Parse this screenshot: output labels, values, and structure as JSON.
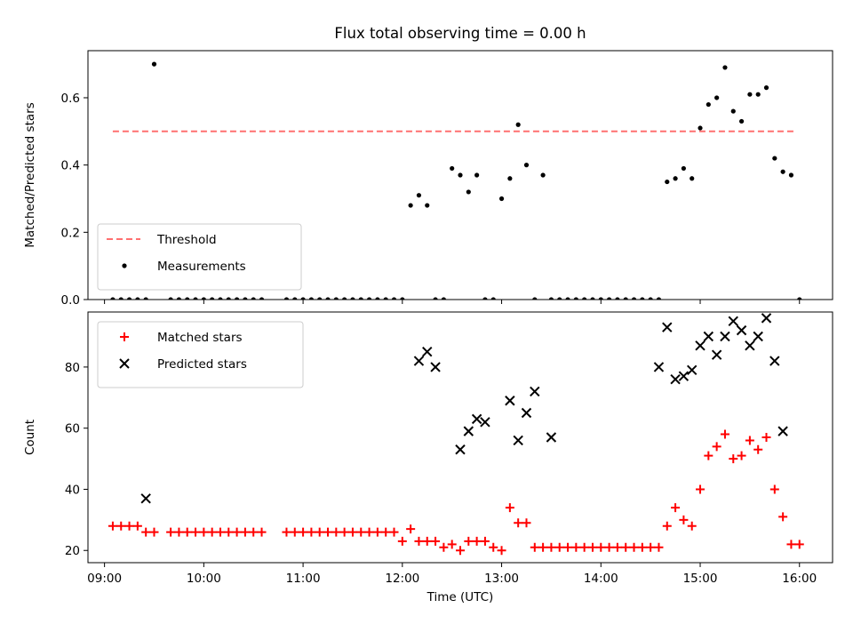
{
  "chart_data": [
    {
      "type": "scatter",
      "title": "Flux total observing time = 0.00 h",
      "xlabel": "",
      "ylabel": "Matched/Predicted stars",
      "xlim": [
        "08:50",
        "16:20"
      ],
      "ylim": [
        0,
        0.74
      ],
      "xticks": [
        "09:00",
        "10:00",
        "11:00",
        "12:00",
        "13:00",
        "14:00",
        "15:00",
        "16:00"
      ],
      "show_xtick_labels": false,
      "yticks": [
        0.0,
        0.2,
        0.4,
        0.6
      ],
      "ytick_labels": [
        "0.0",
        "0.2",
        "0.4",
        "0.6"
      ],
      "legend_position": "lower-left",
      "grid": false,
      "series": [
        {
          "name": "Threshold",
          "kind": "dashed-line",
          "color": "#ff7070",
          "x": [
            "09:05",
            "15:57"
          ],
          "values": [
            0.5,
            0.5
          ]
        },
        {
          "name": "Measurements",
          "kind": "dot",
          "color": "#000000",
          "x": [
            "09:05",
            "09:10",
            "09:15",
            "09:20",
            "09:25",
            "09:30",
            "09:40",
            "09:45",
            "09:50",
            "09:55",
            "10:00",
            "10:05",
            "10:10",
            "10:15",
            "10:20",
            "10:25",
            "10:30",
            "10:35",
            "10:50",
            "10:55",
            "11:00",
            "11:05",
            "11:10",
            "11:15",
            "11:20",
            "11:25",
            "11:30",
            "11:35",
            "11:40",
            "11:45",
            "11:50",
            "11:55",
            "12:00",
            "12:05",
            "12:10",
            "12:15",
            "12:20",
            "12:25",
            "12:30",
            "12:35",
            "12:40",
            "12:45",
            "12:50",
            "12:55",
            "13:00",
            "13:05",
            "13:10",
            "13:15",
            "13:20",
            "13:25",
            "13:30",
            "13:35",
            "13:40",
            "13:45",
            "13:50",
            "13:55",
            "14:00",
            "14:05",
            "14:10",
            "14:15",
            "14:20",
            "14:25",
            "14:30",
            "14:35",
            "14:40",
            "14:45",
            "14:50",
            "14:55",
            "15:00",
            "15:05",
            "15:10",
            "15:15",
            "15:20",
            "15:25",
            "15:30",
            "15:35",
            "15:40",
            "15:45",
            "15:50",
            "15:55",
            "16:00"
          ],
          "values": [
            0,
            0,
            0,
            0,
            0,
            0.7,
            0,
            0,
            0,
            0,
            0,
            0,
            0,
            0,
            0,
            0,
            0,
            0,
            0,
            0,
            0,
            0,
            0,
            0,
            0,
            0,
            0,
            0,
            0,
            0,
            0,
            0,
            0,
            0.28,
            0.31,
            0.28,
            0,
            0,
            0.39,
            0.37,
            0.32,
            0.37,
            0,
            0,
            0.3,
            0.36,
            0.52,
            0.4,
            0,
            0.37,
            0,
            0,
            0,
            0,
            0,
            0,
            0,
            0,
            0,
            0,
            0,
            0,
            0,
            0,
            0.35,
            0.36,
            0.39,
            0.36,
            0.51,
            0.58,
            0.6,
            0.69,
            0.56,
            0.53,
            0.61,
            0.61,
            0.63,
            0.42,
            0.38,
            0.37,
            0
          ]
        }
      ]
    },
    {
      "type": "scatter",
      "title": "",
      "xlabel": "Time (UTC)",
      "ylabel": "Count",
      "xlim": [
        "08:50",
        "16:20"
      ],
      "ylim": [
        16,
        98
      ],
      "xticks": [
        "09:00",
        "10:00",
        "11:00",
        "12:00",
        "13:00",
        "14:00",
        "15:00",
        "16:00"
      ],
      "show_xtick_labels": true,
      "yticks": [
        20,
        40,
        60,
        80
      ],
      "ytick_labels": [
        "20",
        "40",
        "60",
        "80"
      ],
      "legend_position": "top-left",
      "grid": false,
      "series": [
        {
          "name": "Matched stars",
          "kind": "plus",
          "color": "#ff0000",
          "x": [
            "09:05",
            "09:10",
            "09:15",
            "09:20",
            "09:25",
            "09:30",
            "09:40",
            "09:45",
            "09:50",
            "09:55",
            "10:00",
            "10:05",
            "10:10",
            "10:15",
            "10:20",
            "10:25",
            "10:30",
            "10:35",
            "10:50",
            "10:55",
            "11:00",
            "11:05",
            "11:10",
            "11:15",
            "11:20",
            "11:25",
            "11:30",
            "11:35",
            "11:40",
            "11:45",
            "11:50",
            "11:55",
            "12:00",
            "12:05",
            "12:10",
            "12:15",
            "12:20",
            "12:25",
            "12:30",
            "12:35",
            "12:40",
            "12:45",
            "12:50",
            "12:55",
            "13:00",
            "13:05",
            "13:10",
            "13:15",
            "13:20",
            "13:25",
            "13:30",
            "13:35",
            "13:40",
            "13:45",
            "13:50",
            "13:55",
            "14:00",
            "14:05",
            "14:10",
            "14:15",
            "14:20",
            "14:25",
            "14:30",
            "14:35",
            "14:40",
            "14:45",
            "14:50",
            "14:55",
            "15:00",
            "15:05",
            "15:10",
            "15:15",
            "15:20",
            "15:25",
            "15:30",
            "15:35",
            "15:40",
            "15:45",
            "15:50",
            "15:55",
            "16:00"
          ],
          "values": [
            28,
            28,
            28,
            28,
            26,
            26,
            26,
            26,
            26,
            26,
            26,
            26,
            26,
            26,
            26,
            26,
            26,
            26,
            26,
            26,
            26,
            26,
            26,
            26,
            26,
            26,
            26,
            26,
            26,
            26,
            26,
            26,
            23,
            27,
            23,
            23,
            23,
            21,
            22,
            20,
            23,
            23,
            23,
            21,
            20,
            34,
            29,
            29,
            21,
            21,
            21,
            21,
            21,
            21,
            21,
            21,
            21,
            21,
            21,
            21,
            21,
            21,
            21,
            21,
            28,
            34,
            30,
            28,
            40,
            51,
            54,
            58,
            50,
            51,
            56,
            53,
            57,
            40,
            31,
            22,
            22
          ]
        },
        {
          "name": "Predicted stars",
          "kind": "cross",
          "color": "#000000",
          "x": [
            "09:25",
            "12:10",
            "12:15",
            "12:20",
            "12:35",
            "12:40",
            "12:45",
            "12:50",
            "13:05",
            "13:10",
            "13:15",
            "13:20",
            "13:30",
            "14:35",
            "14:40",
            "14:45",
            "14:50",
            "14:55",
            "15:00",
            "15:05",
            "15:10",
            "15:15",
            "15:20",
            "15:25",
            "15:30",
            "15:35",
            "15:40",
            "15:45"
          ],
          "values": [
            37,
            82,
            85,
            80,
            53,
            59,
            63,
            62,
            69,
            56,
            65,
            72,
            57,
            80,
            93,
            76,
            77,
            79,
            87,
            90,
            84,
            90,
            95,
            92,
            87,
            90,
            96,
            82
          ]
        }
      ]
    }
  ],
  "panel_b_extra": {
    "x": [
      "15:50"
    ],
    "values": [
      59
    ]
  }
}
